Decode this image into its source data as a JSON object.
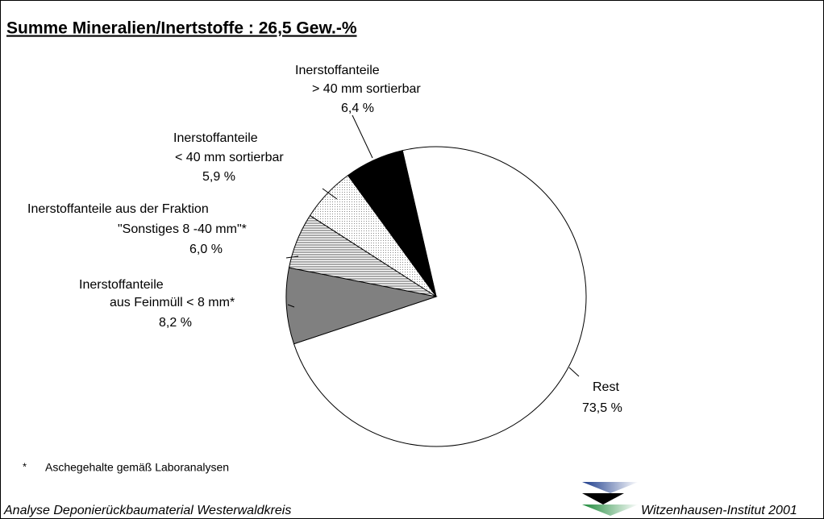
{
  "chart_data": {
    "type": "pie",
    "title": "Summe Mineralien/Inertstoffe : 26,5 Gew.-%",
    "categories": [
      [
        "Rest"
      ],
      [
        "Inerstoffanteile",
        "aus Feinmüll < 8 mm*"
      ],
      [
        "Inerstoffanteile aus der Fraktion",
        "\"Sonstiges 8 -40 mm\"*"
      ],
      [
        "Inerstoffanteile",
        "< 40 mm sortierbar"
      ],
      [
        "Inerstoffanteile",
        "> 40 mm sortierbar"
      ]
    ],
    "values": [
      73.5,
      8.2,
      6.0,
      5.9,
      6.4
    ],
    "value_labels": [
      "73,5 %",
      "8,2 %",
      "6,0 %",
      "5,9 %",
      "6,4 %"
    ],
    "colors": [
      "#ffffff",
      "#808080",
      "#e0e0e0",
      "#f4f4f4",
      "#000000"
    ],
    "patterns": [
      "none",
      "none",
      "lines",
      "dots",
      "none"
    ],
    "footnote_mark": "*",
    "footnote": "Aschegehalte gemäß Laboranalysen",
    "source_left": "Analyse Deponierückbaumaterial Westerwaldkreis",
    "source_right": "Witzenhausen-Institut 2001"
  }
}
